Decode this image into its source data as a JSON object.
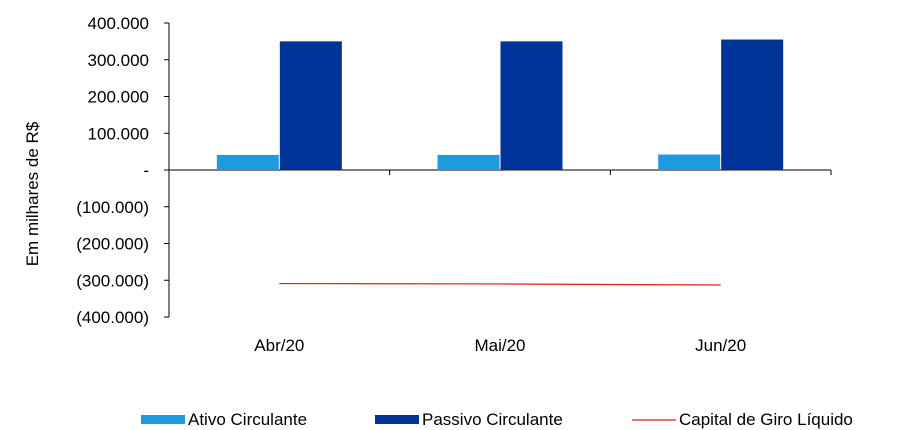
{
  "chart_data": {
    "type": "bar",
    "categories": [
      "Abr/20",
      "Mai/20",
      "Jun/20"
    ],
    "series": [
      {
        "name": "Ativo Circulante",
        "kind": "bar",
        "color": "#1E9BE0",
        "values": [
          41000,
          41000,
          42000
        ]
      },
      {
        "name": "Passivo Circulante",
        "kind": "bar",
        "color": "#003399",
        "values": [
          350000,
          350000,
          355000
        ]
      },
      {
        "name": "Capital de Giro Líquido",
        "kind": "line",
        "color": "#E0201B",
        "values": [
          -309000,
          -310000,
          -313000
        ]
      }
    ],
    "ylabel": "Em milhares de R$",
    "ylim": [
      -400000,
      400000
    ],
    "y_ticks": [
      {
        "value": 400000,
        "label": "400.000"
      },
      {
        "value": 300000,
        "label": "300.000"
      },
      {
        "value": 200000,
        "label": "200.000"
      },
      {
        "value": 100000,
        "label": "100.000"
      },
      {
        "value": 0,
        "label": "-"
      },
      {
        "value": -100000,
        "label": "(100.000)"
      },
      {
        "value": -200000,
        "label": "(200.000)"
      },
      {
        "value": -300000,
        "label": "(300.000)"
      },
      {
        "value": -400000,
        "label": "(400.000)"
      }
    ],
    "grid": false,
    "legend_position": "bottom"
  }
}
